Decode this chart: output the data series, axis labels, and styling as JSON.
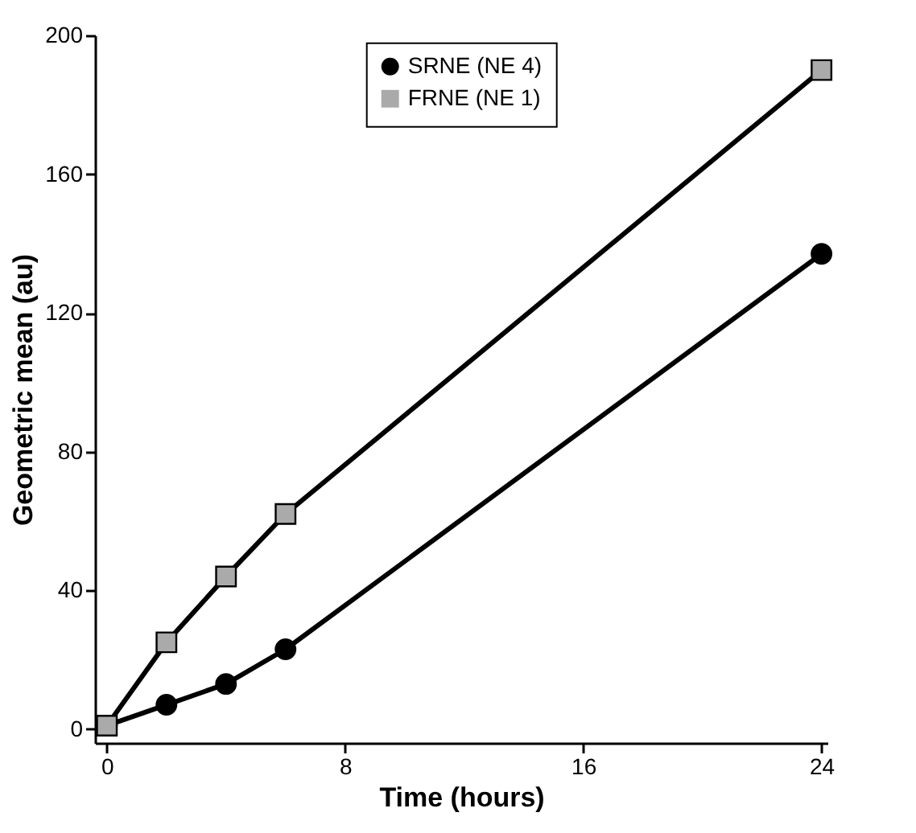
{
  "chart_data": {
    "type": "line",
    "xlabel": "Time (hours)",
    "ylabel": "Geometric mean (au)",
    "x": [
      0,
      2,
      4,
      6,
      24
    ],
    "series": [
      {
        "name": "SRNE (NE 4)",
        "color": "#000000",
        "marker": "circle",
        "values": [
          1,
          7,
          13,
          23,
          137
        ]
      },
      {
        "name": "FRNE (NE 1)",
        "color": "#000000",
        "marker": "square",
        "values": [
          1,
          25,
          44,
          62,
          190
        ]
      }
    ],
    "xlim": [
      -0.4,
      24.2
    ],
    "ylim": [
      -4,
      200
    ],
    "xticks": [
      0,
      8,
      16,
      24
    ],
    "yticks": [
      0,
      40,
      80,
      120,
      160,
      200
    ],
    "grid": false,
    "legend": "top"
  }
}
